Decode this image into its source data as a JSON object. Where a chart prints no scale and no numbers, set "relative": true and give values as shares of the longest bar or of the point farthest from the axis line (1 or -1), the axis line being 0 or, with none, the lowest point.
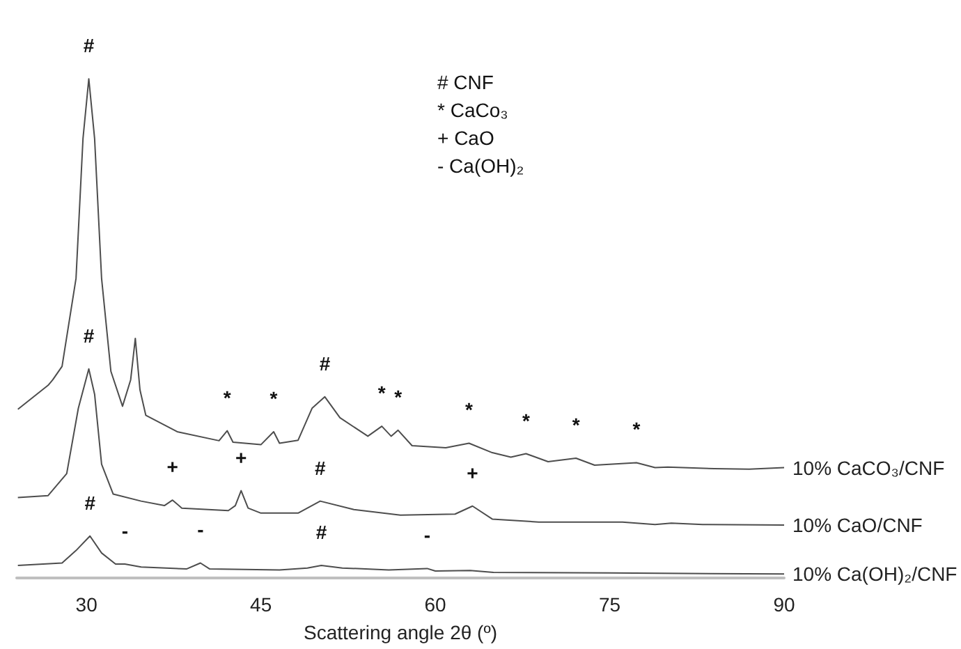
{
  "chart_data": {
    "type": "line",
    "relative": true,
    "xlabel": "Scattering angle 2θ (º)",
    "xlim": [
      24,
      90
    ],
    "xticks": [
      30,
      45,
      60,
      75,
      90
    ],
    "series": [
      {
        "name": "10% CaCO₃/CNF",
        "color": "#4d4d4d",
        "x": [
          24.1,
          26.7,
          27.1,
          27.9,
          29.1,
          29.7,
          30.2,
          30.7,
          31.3,
          32.1,
          33.1,
          33.8,
          34.2,
          34.6,
          35.1,
          37.8,
          41.4,
          42.1,
          42.6,
          45.0,
          46.1,
          46.6,
          48.2,
          49.4,
          50.5,
          51.8,
          54.2,
          55.4,
          56.2,
          56.8,
          58.0,
          60.9,
          62.9,
          64.9,
          66.5,
          67.8,
          69.7,
          72.1,
          73.7,
          77.3,
          78.9,
          80.0,
          84.0,
          87.0,
          90.0
        ],
        "values": [
          0.338,
          0.386,
          0.397,
          0.424,
          0.6,
          0.88,
          1,
          0.88,
          0.6,
          0.414,
          0.344,
          0.397,
          0.48,
          0.377,
          0.326,
          0.293,
          0.275,
          0.295,
          0.272,
          0.267,
          0.293,
          0.27,
          0.276,
          0.34,
          0.363,
          0.321,
          0.284,
          0.304,
          0.284,
          0.296,
          0.265,
          0.261,
          0.27,
          0.251,
          0.242,
          0.249,
          0.233,
          0.24,
          0.226,
          0.231,
          0.221,
          0.222,
          0.219,
          0.218,
          0.221
        ]
      },
      {
        "name": "10% CaO/CNF",
        "color": "#4d4d4d",
        "x": [
          24.1,
          26.7,
          28.3,
          29.3,
          30.2,
          30.7,
          31.3,
          32.3,
          34.7,
          36.7,
          37.4,
          38.2,
          42.2,
          42.8,
          43.3,
          43.9,
          45.0,
          48.2,
          50.1,
          53.0,
          57.0,
          61.7,
          63.2,
          64.9,
          68.9,
          76.1,
          78.9,
          80.3,
          83.0,
          90.0
        ],
        "values": [
          0.161,
          0.165,
          0.209,
          0.34,
          0.419,
          0.368,
          0.228,
          0.168,
          0.154,
          0.145,
          0.156,
          0.14,
          0.135,
          0.145,
          0.175,
          0.14,
          0.13,
          0.13,
          0.154,
          0.137,
          0.126,
          0.128,
          0.144,
          0.118,
          0.112,
          0.112,
          0.107,
          0.11,
          0.107,
          0.106
        ]
      },
      {
        "name": "10% Ca(OH)₂/CNF",
        "color": "#4d4d4d",
        "x": [
          24.1,
          27.9,
          29.1,
          30.3,
          31.3,
          32.5,
          33.3,
          34.7,
          38.6,
          39.8,
          40.6,
          46.6,
          49.0,
          50.2,
          52.0,
          56.0,
          59.3,
          60.0,
          63.0,
          65.0,
          75.0,
          90.0
        ],
        "values": [
          0.025,
          0.03,
          0.055,
          0.084,
          0.05,
          0.028,
          0.028,
          0.022,
          0.018,
          0.03,
          0.018,
          0.016,
          0.02,
          0.025,
          0.02,
          0.016,
          0.019,
          0.014,
          0.015,
          0.011,
          0.01,
          0.008
        ]
      }
    ],
    "annotations": [
      "# CNF",
      "* CaCo₃",
      "+ CaO",
      "- Ca(OH)₂",
      {
        "text": "#",
        "x": 30.2,
        "y": 1
      },
      {
        "text": "*",
        "x": 42.1,
        "y": 0.295
      },
      {
        "text": "*",
        "x": 46.1,
        "y": 0.293
      },
      {
        "text": "#",
        "x": 50.5,
        "y": 0.363
      },
      {
        "text": "*",
        "x": 55.4,
        "y": 0.304
      },
      {
        "text": "*",
        "x": 56.8,
        "y": 0.296
      },
      {
        "text": "*",
        "x": 62.9,
        "y": 0.27
      },
      {
        "text": "*",
        "x": 67.8,
        "y": 0.249
      },
      {
        "text": "*",
        "x": 72.1,
        "y": 0.24
      },
      {
        "text": "*",
        "x": 77.3,
        "y": 0.231
      },
      {
        "text": "#",
        "x": 30.2,
        "y": 0.419
      },
      {
        "text": "+",
        "x": 37.4,
        "y": 0.156
      },
      {
        "text": "+",
        "x": 43.3,
        "y": 0.175
      },
      {
        "text": "#",
        "x": 50.1,
        "y": 0.154
      },
      {
        "text": "+",
        "x": 63.2,
        "y": 0.144
      },
      {
        "text": "#",
        "x": 30.3,
        "y": 0.084
      },
      {
        "text": "-",
        "x": 33.3,
        "y": 0.028
      },
      {
        "text": "-",
        "x": 39.8,
        "y": 0.03
      },
      {
        "text": "#",
        "x": 50.2,
        "y": 0.025
      },
      {
        "text": "-",
        "x": 59.3,
        "y": 0.019
      }
    ]
  }
}
